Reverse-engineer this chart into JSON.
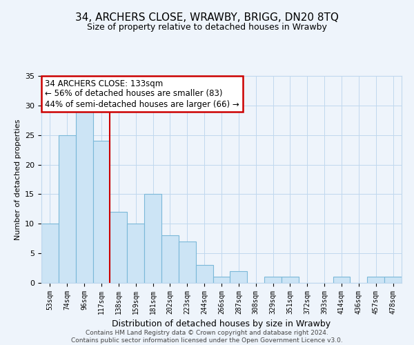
{
  "title": "34, ARCHERS CLOSE, WRAWBY, BRIGG, DN20 8TQ",
  "subtitle": "Size of property relative to detached houses in Wrawby",
  "xlabel": "Distribution of detached houses by size in Wrawby",
  "ylabel": "Number of detached properties",
  "bin_labels": [
    "53sqm",
    "74sqm",
    "96sqm",
    "117sqm",
    "138sqm",
    "159sqm",
    "181sqm",
    "202sqm",
    "223sqm",
    "244sqm",
    "266sqm",
    "287sqm",
    "308sqm",
    "329sqm",
    "351sqm",
    "372sqm",
    "393sqm",
    "414sqm",
    "436sqm",
    "457sqm",
    "478sqm"
  ],
  "bar_values": [
    10,
    25,
    29,
    24,
    12,
    10,
    15,
    8,
    7,
    3,
    1,
    2,
    0,
    1,
    1,
    0,
    0,
    1,
    0,
    1,
    1
  ],
  "bar_color": "#cce4f5",
  "bar_edge_color": "#7ab8d8",
  "vline_color": "#cc0000",
  "annotation_title": "34 ARCHERS CLOSE: 133sqm",
  "annotation_line1": "← 56% of detached houses are smaller (83)",
  "annotation_line2": "44% of semi-detached houses are larger (66) →",
  "annotation_box_color": "#ffffff",
  "annotation_box_edge": "#cc0000",
  "ylim": [
    0,
    35
  ],
  "yticks": [
    0,
    5,
    10,
    15,
    20,
    25,
    30,
    35
  ],
  "footer_line1": "Contains HM Land Registry data © Crown copyright and database right 2024.",
  "footer_line2": "Contains public sector information licensed under the Open Government Licence v3.0.",
  "bg_color": "#eef4fb",
  "grid_color": "#c0d8ee"
}
